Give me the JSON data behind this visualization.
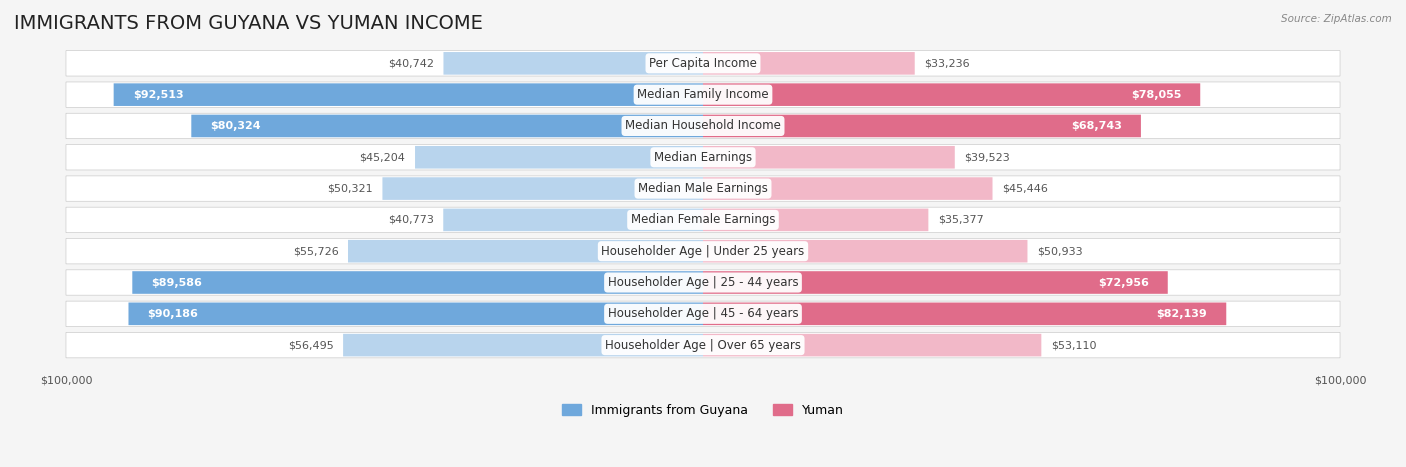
{
  "title": "IMMIGRANTS FROM GUYANA VS YUMAN INCOME",
  "source": "Source: ZipAtlas.com",
  "categories": [
    "Per Capita Income",
    "Median Family Income",
    "Median Household Income",
    "Median Earnings",
    "Median Male Earnings",
    "Median Female Earnings",
    "Householder Age | Under 25 years",
    "Householder Age | 25 - 44 years",
    "Householder Age | 45 - 64 years",
    "Householder Age | Over 65 years"
  ],
  "guyana_values": [
    40742,
    92513,
    80324,
    45204,
    50321,
    40773,
    55726,
    89586,
    90186,
    56495
  ],
  "yuman_values": [
    33236,
    78055,
    68743,
    39523,
    45446,
    35377,
    50933,
    72956,
    82139,
    53110
  ],
  "guyana_labels": [
    "$40,742",
    "$92,513",
    "$80,324",
    "$45,204",
    "$50,321",
    "$40,773",
    "$55,726",
    "$89,586",
    "$90,186",
    "$56,495"
  ],
  "yuman_labels": [
    "$33,236",
    "$78,055",
    "$68,743",
    "$39,523",
    "$45,446",
    "$35,377",
    "$50,933",
    "$72,956",
    "$82,139",
    "$53,110"
  ],
  "max_value": 100000,
  "guyana_color_full": "#6fa8dc",
  "guyana_color_light": "#b8d4ed",
  "yuman_color_full": "#e06c8a",
  "yuman_color_light": "#f2b8c8",
  "background_color": "#f5f5f5",
  "row_bg_color": "#ffffff",
  "title_fontsize": 14,
  "label_fontsize": 8.5,
  "value_fontsize": 8,
  "legend_fontsize": 9,
  "axis_label_fontsize": 8
}
